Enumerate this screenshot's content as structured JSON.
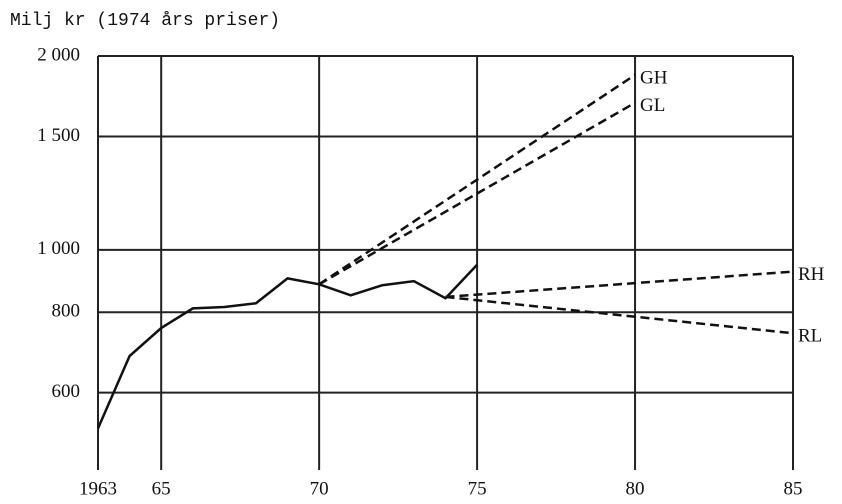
{
  "chart_data": {
    "type": "line",
    "y_label": "Milj kr (1974 års priser)",
    "log_y": true,
    "grid": true,
    "xlim": [
      1963,
      1985
    ],
    "ylim": [
      455,
      2000
    ],
    "xticks": [
      {
        "value": 1963,
        "label": "1963"
      },
      {
        "value": 1965,
        "label": "65"
      },
      {
        "value": 1970,
        "label": "70"
      },
      {
        "value": 1975,
        "label": "75"
      },
      {
        "value": 1980,
        "label": "80"
      },
      {
        "value": 1985,
        "label": "85"
      }
    ],
    "yticks": [
      600,
      800,
      {
        "value": 1000,
        "label": "1 000"
      },
      {
        "value": 1500,
        "label": "1 500"
      },
      {
        "value": 2000,
        "label": "2 000"
      }
    ],
    "series": [
      {
        "color": "#111111",
        "dash": false,
        "x": [
          1963,
          1964,
          1965,
          1966,
          1967,
          1968,
          1969,
          1970,
          1971,
          1972,
          1973,
          1974,
          1975
        ],
        "values": [
          528,
          684,
          756,
          811,
          815,
          826,
          903,
          884,
          850,
          881,
          894,
          841,
          948
        ]
      },
      {
        "name": "GH",
        "color": "#111111",
        "dash": true,
        "x": [
          1970,
          1980
        ],
        "values": [
          884,
          1869
        ]
      },
      {
        "name": "GL",
        "color": "#111111",
        "dash": true,
        "x": [
          1970,
          1980
        ],
        "values": [
          884,
          1692
        ]
      },
      {
        "name": "RH",
        "color": "#111111",
        "dash": true,
        "x": [
          1974,
          1985
        ],
        "values": [
          845,
          925
        ]
      },
      {
        "name": "RL",
        "color": "#111111",
        "dash": true,
        "x": [
          1974,
          1985
        ],
        "values": [
          845,
          742
        ]
      }
    ]
  }
}
